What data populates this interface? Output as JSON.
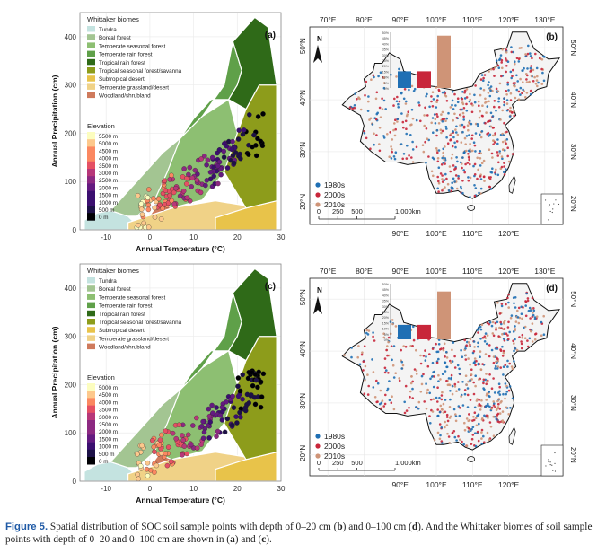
{
  "figure": {
    "label": "Figure 5.",
    "caption_parts": [
      " Spatial distribution of SOC soil sample points with depth of 0–20 cm (",
      "b",
      ") and 0–100 cm (",
      "d",
      "). And the Whittaker biomes of soil sample points with depth of 0–20 and 0–100 cm are shown in (",
      "a",
      ") and (",
      "c",
      ")."
    ]
  },
  "colors": {
    "tundra": "#c4e3e0",
    "boreal": "#a3c592",
    "temperate_seasonal": "#8dbf72",
    "temperate_rain": "#5fa049",
    "tropical_rain": "#2f6a18",
    "tropical_seasonal": "#8d9c1b",
    "subtropical_desert": "#e8c34a",
    "temperate_grassland": "#f0d287",
    "woodland": "#cf7a5c",
    "s1980": "#1f6fb4",
    "s2000": "#c8263a",
    "s2010": "#cf9477",
    "map_land": "#f4f4f4"
  },
  "chart_data": [
    {
      "type": "scatter",
      "panel_label": "(a)",
      "xlabel": "Annual Temperature (°C)",
      "ylabel": "Annual Precipitation (cm)",
      "xlim": [
        -16,
        30
      ],
      "ylim": [
        0,
        450
      ],
      "xticks": [
        -10,
        0,
        10,
        20,
        30
      ],
      "yticks": [
        0,
        100,
        200,
        300,
        400
      ],
      "legend_title": "Whittaker biomes",
      "biomes": [
        "Tundra",
        "Boreal forest",
        "Temperate seasonal forest",
        "Temperate rain forest",
        "Tropical rain forest",
        "Tropical seasonal forest/savanna",
        "Subtropical desert",
        "Temperate grassland/desert",
        "Woodland/shrubland"
      ],
      "biome_keys": [
        "tundra",
        "boreal",
        "temperate_seasonal",
        "temperate_rain",
        "tropical_rain",
        "tropical_seasonal",
        "subtropical_desert",
        "temperate_grassland",
        "woodland"
      ],
      "elevation_title": "Elevation",
      "elevation_labels": [
        "5500 m",
        "5000 m",
        "4500 m",
        "4000 m",
        "3500 m",
        "3000 m",
        "2500 m",
        "2000 m",
        "1500 m",
        "1000 m",
        "500 m",
        "0 m"
      ]
    },
    {
      "type": "scatter",
      "panel_label": "(c)",
      "xlabel": "Annual Temperature (°C)",
      "ylabel": "Annual Precipitation (cm)",
      "xlim": [
        -16,
        30
      ],
      "ylim": [
        0,
        450
      ],
      "xticks": [
        -10,
        0,
        10,
        20,
        30
      ],
      "yticks": [
        0,
        100,
        200,
        300,
        400
      ],
      "legend_title": "Whittaker biomes",
      "biomes": [
        "Tundra",
        "Boreal forest",
        "Temperate seasonal forest",
        "Temperate rain forest",
        "Tropical rain forest",
        "Tropical seasonal forest/savanna",
        "Subtropical desert",
        "Temperate grassland/desert",
        "Woodland/shrubland"
      ],
      "biome_keys": [
        "tundra",
        "boreal",
        "temperate_seasonal",
        "temperate_rain",
        "tropical_rain",
        "tropical_seasonal",
        "subtropical_desert",
        "temperate_grassland",
        "woodland"
      ],
      "elevation_title": "Elevation",
      "elevation_labels": [
        "5000 m",
        "4500 m",
        "4000 m",
        "3500 m",
        "3000 m",
        "2500 m",
        "2000 m",
        "1500 m",
        "1000 m",
        "500 m",
        "0 m"
      ]
    },
    {
      "type": "bar",
      "panel_label": "(b)",
      "inset_categories": [
        "1980s",
        "2000s",
        "2010s"
      ],
      "inset_values": [
        15,
        15,
        47
      ],
      "inset_ylim": [
        0,
        50
      ],
      "inset_yticks": [
        "50%",
        "45%",
        "40%",
        "35%",
        "30%",
        "25%",
        "20%",
        "15%",
        "10%",
        "5%",
        "0%"
      ],
      "legend": [
        "1980s",
        "2000s",
        "2010s"
      ],
      "lon_labels_top": [
        "70°E",
        "80°E",
        "90°E",
        "100°E",
        "110°E",
        "120°E",
        "130°E"
      ],
      "lon_labels_bottom": [
        "90°E",
        "100°E",
        "110°E",
        "120°E"
      ],
      "lat_labels": [
        "50°N",
        "40°N",
        "30°N",
        "20°N"
      ],
      "scalebar_ticks": [
        "0",
        "250",
        "500",
        "1,000km"
      ],
      "north": "N"
    },
    {
      "type": "bar",
      "panel_label": "(d)",
      "inset_categories": [
        "1980s",
        "2000s",
        "2010s"
      ],
      "inset_values": [
        13,
        13,
        43
      ],
      "inset_ylim": [
        0,
        50
      ],
      "inset_yticks": [
        "50%",
        "45%",
        "40%",
        "35%",
        "30%",
        "25%",
        "20%",
        "15%",
        "10%",
        "5%",
        "0%"
      ],
      "legend": [
        "1980s",
        "2000s",
        "2010s"
      ],
      "lon_labels_top": [
        "70°E",
        "80°E",
        "90°E",
        "100°E",
        "110°E",
        "120°E",
        "130°E"
      ],
      "lon_labels_bottom": [
        "90°E",
        "100°E",
        "110°E",
        "120°E"
      ],
      "lat_labels": [
        "50°N",
        "40°N",
        "30°N",
        "20°N"
      ],
      "scalebar_ticks": [
        "0",
        "250",
        "500",
        "1,000km"
      ],
      "north": "N"
    }
  ]
}
